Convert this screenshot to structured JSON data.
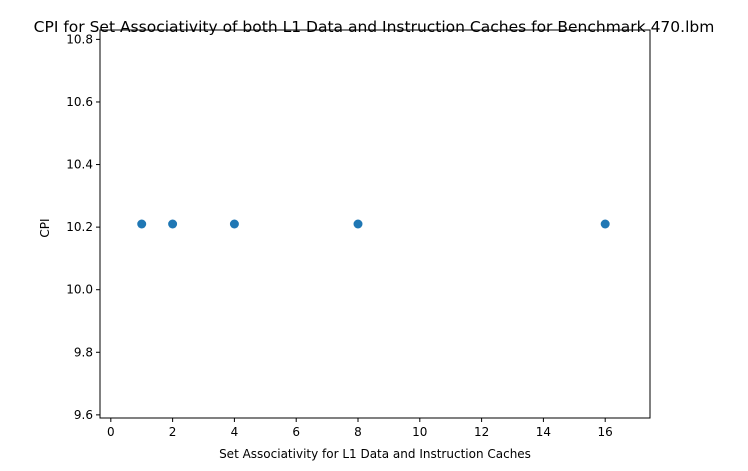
{
  "chart_data": {
    "type": "scatter",
    "title": "CPI for Set Associativity of both L1 Data and Instruction Caches for Benchmark 470.lbm",
    "xlabel": "Set Associativity for L1 Data and Instruction Caches",
    "ylabel": "CPI",
    "x": [
      1,
      2,
      4,
      8,
      16
    ],
    "y": [
      10.21,
      10.21,
      10.21,
      10.21,
      10.21
    ],
    "xlim": [
      -0.35,
      17.45
    ],
    "ylim": [
      9.59,
      10.83
    ],
    "xticks": [
      "0",
      "2",
      "4",
      "6",
      "8",
      "10",
      "12",
      "14",
      "16"
    ],
    "yticks": [
      "9.6",
      "9.8",
      "10.0",
      "10.2",
      "10.4",
      "10.6",
      "10.8"
    ],
    "grid": false,
    "point_color": "#1f77b4"
  }
}
